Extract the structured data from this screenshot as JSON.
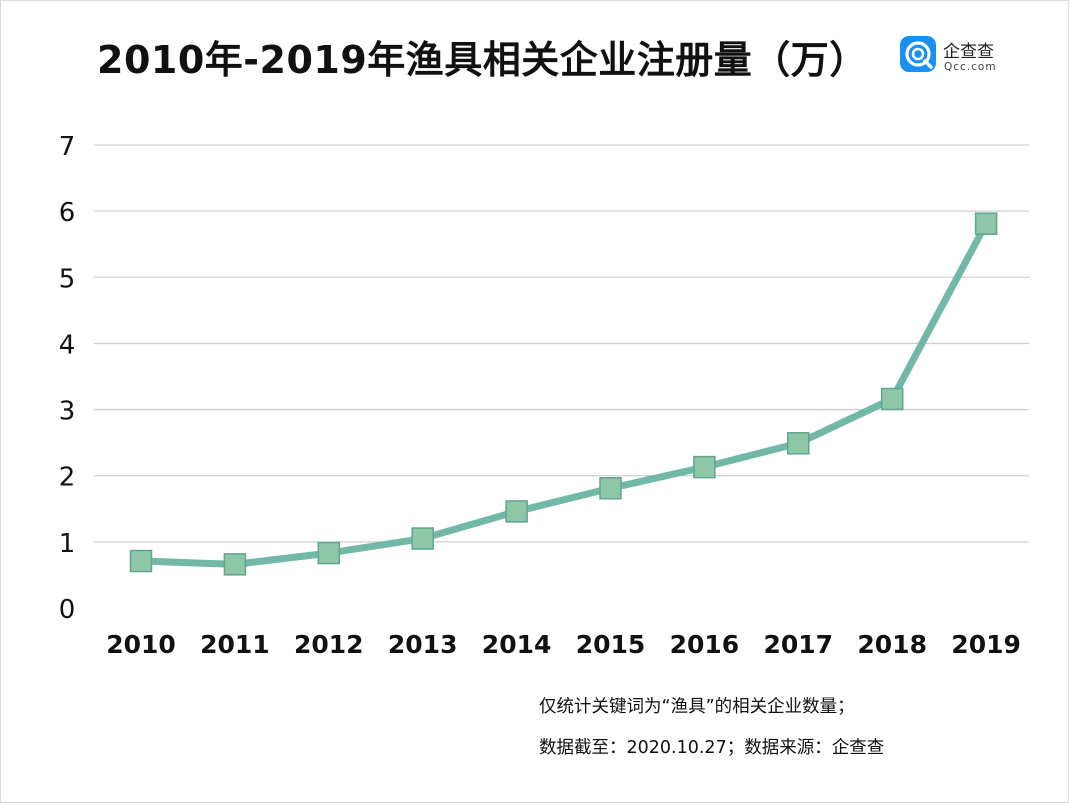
{
  "chart_data": {
    "type": "line",
    "title": "2010年-2019年渔具相关企业注册量（万）",
    "categories": [
      "2010",
      "2011",
      "2012",
      "2013",
      "2014",
      "2015",
      "2016",
      "2017",
      "2018",
      "2019"
    ],
    "series": [
      {
        "values": [
          0.71,
          0.66,
          0.83,
          1.05,
          1.46,
          1.81,
          2.13,
          2.49,
          3.16,
          5.81
        ]
      }
    ],
    "y_ticks": [
      "0",
      "1",
      "2",
      "3",
      "4",
      "5",
      "6",
      "7"
    ],
    "ylim": [
      0,
      7
    ],
    "grid": true,
    "legend": "none",
    "colors": {
      "line": "#72b8a6",
      "marker_fill": "#8ec6a8",
      "marker_stroke": "#5fa58f",
      "grid": "#d0d0d0"
    }
  },
  "brand": {
    "name": "企查查",
    "url": "Qcc.com",
    "color": "#1a8ff2"
  },
  "notes": {
    "line1": "仅统计关键词为“渔具”的相关企业数量；",
    "line2": "数据截至：2020.10.27；数据来源：企查查"
  }
}
